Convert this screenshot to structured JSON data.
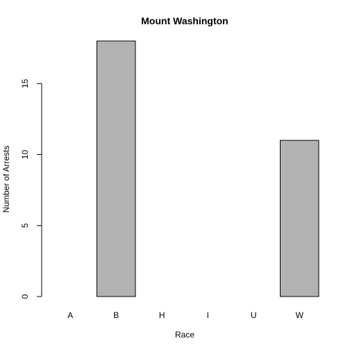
{
  "chart_data": {
    "type": "bar",
    "title": "Mount Washington",
    "xlabel": "Race",
    "ylabel": "Number of Arrests",
    "categories": [
      "A",
      "B",
      "H",
      "I",
      "U",
      "W"
    ],
    "values": [
      0,
      18,
      0,
      0,
      0,
      11
    ],
    "yticks": [
      0,
      5,
      10,
      15
    ],
    "ylim": [
      0,
      18
    ],
    "bar_color": "#b2b2b2",
    "grid": false,
    "legend": "none"
  }
}
